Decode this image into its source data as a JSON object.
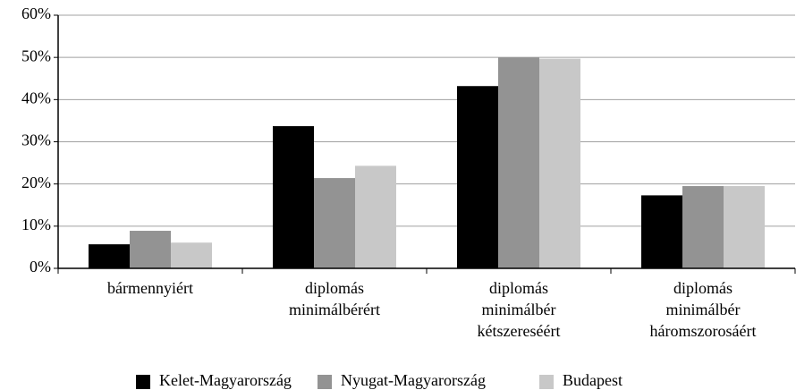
{
  "chart_data": {
    "type": "bar",
    "categories": [
      "bármennyiért",
      "diplomás minimálbérért",
      "diplomás minimálbér kétszereséért",
      "diplomás minimálbér háromszorosáért"
    ],
    "series": [
      {
        "name": "Kelet-Magyarország",
        "color": "#000000",
        "values": [
          5.7,
          33.7,
          43.2,
          17.3
        ]
      },
      {
        "name": "Nyugat-Magyarország",
        "color": "#939393",
        "values": [
          8.9,
          21.4,
          50,
          19.5
        ]
      },
      {
        "name": "Budapest",
        "color": "#c8c8c8",
        "values": [
          6.1,
          24.3,
          49.7,
          19.5
        ]
      }
    ],
    "ylim": [
      0,
      60
    ],
    "yticks": [
      {
        "value": 0,
        "label": "0%"
      },
      {
        "value": 10,
        "label": "10%"
      },
      {
        "value": 20,
        "label": "20%"
      },
      {
        "value": 30,
        "label": "30%"
      },
      {
        "value": 40,
        "label": "40%"
      },
      {
        "value": 50,
        "label": "50%"
      },
      {
        "value": 60,
        "label": "60%"
      }
    ],
    "grid": true,
    "legend": "bottom"
  }
}
